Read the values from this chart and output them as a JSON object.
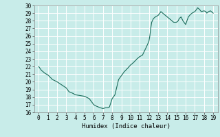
{
  "title": "",
  "xlabel": "Humidex (Indice chaleur)",
  "ylabel": "",
  "background_color": "#c8ece9",
  "grid_color": "#ffffff",
  "line_color": "#1a6b5a",
  "xlim": [
    -0.5,
    19.5
  ],
  "ylim": [
    16,
    30
  ],
  "xticks": [
    0,
    1,
    2,
    3,
    4,
    5,
    6,
    7,
    8,
    9,
    10,
    11,
    12,
    13,
    14,
    15,
    16,
    17,
    18,
    19
  ],
  "yticks": [
    16,
    17,
    18,
    19,
    20,
    21,
    22,
    23,
    24,
    25,
    26,
    27,
    28,
    29,
    30
  ],
  "x": [
    0,
    0.3,
    0.7,
    1.0,
    1.5,
    2.0,
    2.5,
    3.0,
    3.3,
    3.7,
    4.0,
    4.5,
    5.0,
    5.5,
    6.0,
    6.3,
    6.7,
    7.0,
    7.3,
    7.5,
    7.7,
    8.0,
    8.3,
    8.7,
    9.0,
    9.3,
    9.7,
    10.0,
    10.3,
    10.7,
    11.0,
    11.3,
    11.7,
    12.0,
    12.1,
    12.2,
    12.3,
    12.5,
    12.7,
    13.0,
    13.2,
    13.3,
    13.5,
    13.7,
    14.0,
    14.2,
    14.3,
    14.5,
    14.7,
    15.0,
    15.2,
    15.3,
    15.5,
    15.7,
    16.0,
    16.2,
    16.3,
    16.5,
    16.7,
    17.0,
    17.2,
    17.3,
    17.5,
    17.7,
    18.0,
    18.2,
    18.3,
    18.5,
    18.7,
    19.0
  ],
  "y": [
    22.0,
    21.5,
    21.1,
    20.9,
    20.3,
    20.0,
    19.6,
    19.2,
    18.7,
    18.5,
    18.3,
    18.2,
    18.1,
    17.8,
    17.0,
    16.8,
    16.6,
    16.5,
    16.6,
    16.6,
    16.7,
    17.8,
    18.3,
    20.3,
    20.8,
    21.3,
    21.8,
    22.2,
    22.5,
    23.0,
    23.3,
    23.5,
    24.5,
    25.3,
    26.0,
    27.0,
    27.8,
    28.3,
    28.5,
    28.7,
    29.0,
    29.2,
    29.0,
    28.8,
    28.5,
    28.3,
    28.2,
    28.0,
    27.8,
    27.8,
    28.0,
    28.3,
    28.5,
    28.0,
    27.5,
    28.2,
    28.5,
    28.8,
    29.0,
    29.2,
    29.5,
    29.7,
    29.5,
    29.2,
    29.3,
    29.2,
    29.0,
    29.2,
    29.3,
    29.0
  ],
  "tick_fontsize": 5.5,
  "xlabel_fontsize": 6.5
}
